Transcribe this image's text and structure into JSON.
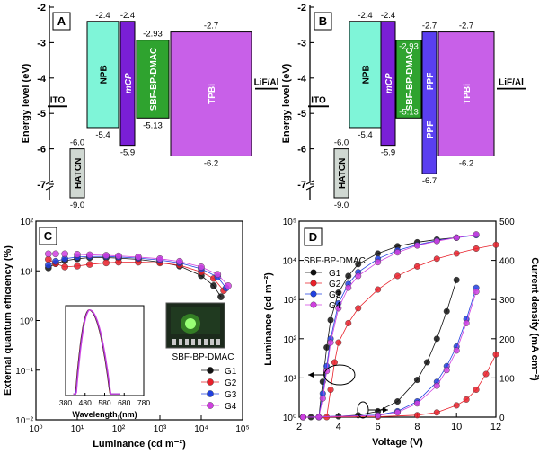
{
  "chart_data": [
    {
      "panel": "A",
      "type": "energy-level-diagram",
      "ylabel": "Energy level (eV)",
      "ylim": [
        -7,
        -2
      ],
      "yticks": [
        "-2",
        "-3",
        "-4",
        "-5",
        "-6",
        "-7"
      ],
      "layers": [
        {
          "name": "HATCN",
          "top": -6.0,
          "bottom": -9.0,
          "top_label": "-6.0",
          "bottom_label": "-9.0",
          "color": "#d0d8d2"
        },
        {
          "name": "NPB",
          "top": -2.4,
          "bottom": -5.4,
          "top_label": "-2.4",
          "bottom_label": "-5.4",
          "color": "#7ff5d8"
        },
        {
          "name": "mCP",
          "top": -2.4,
          "bottom": -5.9,
          "top_label": "-2.4",
          "bottom_label": "-5.9",
          "color": "#7a1fd6"
        },
        {
          "name": "SBF-BP-DMAC",
          "top": -2.93,
          "bottom": -5.13,
          "top_label": "-2.93",
          "bottom_label": "-5.13",
          "color": "#2fa32f"
        },
        {
          "name": "TPBi",
          "top": -2.7,
          "bottom": -6.2,
          "top_label": "-2.7",
          "bottom_label": "-6.2",
          "color": "#c860e8"
        }
      ],
      "electrodes": [
        {
          "name": "ITO"
        },
        {
          "name": "LiF/Al"
        }
      ]
    },
    {
      "panel": "B",
      "type": "energy-level-diagram",
      "ylabel": "Energy level (eV)",
      "ylim": [
        -7,
        -2
      ],
      "yticks": [
        "-2",
        "-3",
        "-4",
        "-5",
        "-6",
        "-7"
      ],
      "layers": [
        {
          "name": "HATCN",
          "top": -6.0,
          "bottom": -9.0,
          "top_label": "-6.0",
          "bottom_label": "-9.0",
          "color": "#d0d8d2"
        },
        {
          "name": "NPB",
          "top": -2.4,
          "bottom": -5.4,
          "top_label": "-2.4",
          "bottom_label": "-5.4",
          "color": "#7ff5d8"
        },
        {
          "name": "mCP",
          "top": -2.4,
          "bottom": -5.9,
          "top_label": "-2.4",
          "bottom_label": "-5.9",
          "color": "#7a1fd6"
        },
        {
          "name": "SBF-BP-DMAC",
          "top": -2.93,
          "bottom": -5.13,
          "top_label": "-2.93",
          "bottom_label": "-5.13",
          "color": "#2fa32f"
        },
        {
          "name": "PPF",
          "top": -2.7,
          "bottom": -6.7,
          "top_label": "-2.7",
          "bottom_label": "-6.7",
          "color": "#5a3ff0"
        },
        {
          "name": "TPBi",
          "top": -2.7,
          "bottom": -6.2,
          "top_label": "-2.7",
          "bottom_label": "-6.2",
          "color": "#c860e8"
        }
      ],
      "electrodes": [
        {
          "name": "ITO"
        },
        {
          "name": "LiF/Al"
        }
      ]
    },
    {
      "panel": "C",
      "type": "scatter",
      "xlabel": "Luminance (cd m⁻²)",
      "ylabel": "External quantum efficiency (%)",
      "xscale": "log",
      "yscale": "log",
      "xlim": [
        1,
        100000
      ],
      "ylim": [
        0.01,
        100
      ],
      "xticks": [
        "10⁰",
        "10¹",
        "10²",
        "10³",
        "10⁴",
        "10⁵"
      ],
      "yticks": [
        "10⁻²",
        "10⁻¹",
        "10⁰",
        "10¹",
        "10²"
      ],
      "legend_title": "SBF-BP-DMAC",
      "legend_position": "bottom-right",
      "series": [
        {
          "name": "G1",
          "color": "#111111",
          "x": [
            2,
            3,
            5,
            10,
            20,
            50,
            100,
            300,
            1000,
            3000,
            10000,
            20000,
            30000
          ],
          "y": [
            11.5,
            14,
            16,
            17.5,
            18.5,
            18.5,
            18,
            17,
            15,
            12.5,
            8,
            5,
            3
          ]
        },
        {
          "name": "G2",
          "color": "#e8202a",
          "x": [
            2,
            3,
            5,
            10,
            20,
            50,
            100,
            300,
            1000,
            3000,
            10000,
            20000,
            35000
          ],
          "y": [
            17,
            14,
            12,
            12.5,
            13.5,
            14.5,
            15,
            15,
            14.5,
            13,
            9.5,
            7,
            4
          ]
        },
        {
          "name": "G3",
          "color": "#2040e0",
          "x": [
            2,
            3,
            5,
            10,
            20,
            50,
            100,
            300,
            1000,
            3000,
            10000,
            25000,
            40000
          ],
          "y": [
            13,
            15.5,
            17.5,
            19,
            19.5,
            19.5,
            19,
            18,
            16.5,
            14.5,
            11,
            7.5,
            4.5
          ]
        },
        {
          "name": "G4",
          "color": "#d040e0",
          "x": [
            2,
            3,
            5,
            10,
            20,
            50,
            100,
            300,
            1000,
            3000,
            10000,
            25000,
            45000
          ],
          "y": [
            22,
            22,
            22,
            21.5,
            21,
            20.5,
            20,
            19,
            17.5,
            15.5,
            12,
            8.5,
            5
          ]
        }
      ],
      "inset": {
        "type": "line",
        "xlabel": "Wavelength (nm)",
        "xticks": [
          "380",
          "480",
          "580",
          "680",
          "780"
        ],
        "xlim": [
          380,
          780
        ],
        "yscale": "log",
        "ylim": [
          0.01,
          2
        ],
        "peak_nm": 500,
        "peak_value": 1.55
      }
    },
    {
      "panel": "D",
      "type": "scatter",
      "xlabel": "Voltage (V)",
      "ylabel": "Luminance (cd m⁻²)",
      "ylabel_right": "Current density (mA cm⁻²)",
      "xlim": [
        2,
        12
      ],
      "ylim": [
        1,
        100000
      ],
      "yscale": "log",
      "ylim_right": [
        0,
        500
      ],
      "xticks": [
        "2",
        "4",
        "6",
        "8",
        "10",
        "12"
      ],
      "yticks": [
        "10⁰",
        "10¹",
        "10²",
        "10³",
        "10⁴",
        "10⁵"
      ],
      "yticks_right": [
        "0",
        "100",
        "200",
        "300",
        "400",
        "500"
      ],
      "legend_title": "SBF-BP-DMAC",
      "legend_position": "top-left",
      "series": [
        {
          "name": "G1",
          "color": "#111111",
          "luminance": {
            "x": [
              2.2,
              2.6,
              3.0,
              3.2,
              3.4,
              3.6,
              4.0,
              4.5,
              5.0,
              6.0,
              7.0,
              8.0,
              9.0,
              10.0
            ],
            "y": [
              1,
              1,
              1,
              8,
              60,
              300,
              1500,
              4000,
              8000,
              15000,
              23000,
              29000,
              34000,
              38000
            ]
          },
          "current": {
            "x": [
              2.2,
              4.0,
              5.0,
              6.0,
              7.0,
              8.0,
              8.5,
              9.0,
              9.5,
              10.0
            ],
            "y": [
              0,
              2,
              5,
              15,
              40,
              95,
              140,
              200,
              270,
              350
            ]
          }
        },
        {
          "name": "G2",
          "color": "#e8202a",
          "luminance": {
            "x": [
              2.2,
              3.0,
              3.4,
              3.6,
              3.8,
              4.0,
              4.5,
              5.0,
              6.0,
              7.0,
              8.0,
              9.0,
              10.0,
              11.0,
              12.0
            ],
            "y": [
              1,
              1,
              1,
              5,
              25,
              80,
              250,
              600,
              1800,
              4000,
              7000,
              11000,
              15000,
              20000,
              25000
            ]
          },
          "current": {
            "x": [
              2.2,
              6.0,
              8.0,
              9.0,
              10.0,
              10.5,
              11.0,
              11.5,
              12.0
            ],
            "y": [
              0,
              1,
              5,
              12,
              30,
              45,
              70,
              110,
              160
            ]
          }
        },
        {
          "name": "G3",
          "color": "#2040e0",
          "luminance": {
            "x": [
              2.2,
              3.0,
              3.2,
              3.4,
              3.6,
              4.0,
              4.5,
              5.0,
              6.0,
              7.0,
              8.0,
              9.0,
              10.0,
              11.0
            ],
            "y": [
              1,
              1,
              4,
              20,
              100,
              800,
              2500,
              5000,
              11000,
              18000,
              25000,
              32000,
              38000,
              44000
            ]
          },
          "current": {
            "x": [
              2.2,
              6.0,
              7.0,
              8.0,
              9.0,
              9.5,
              10.0,
              10.5,
              11.0
            ],
            "y": [
              0,
              5,
              15,
              40,
              90,
              130,
              180,
              250,
              330
            ]
          }
        },
        {
          "name": "G4",
          "color": "#d040e0",
          "luminance": {
            "x": [
              2.2,
              3.0,
              3.2,
              3.4,
              3.6,
              4.0,
              4.5,
              5.0,
              6.0,
              7.0,
              8.0,
              9.0,
              10.0,
              11.0
            ],
            "y": [
              1,
              1,
              3,
              15,
              80,
              600,
              2000,
              4000,
              9000,
              16000,
              24000,
              31000,
              38000,
              46000
            ]
          },
          "current": {
            "x": [
              2.2,
              6.0,
              7.0,
              8.0,
              9.0,
              9.5,
              10.0,
              10.5,
              11.0
            ],
            "y": [
              0,
              4,
              12,
              35,
              80,
              120,
              170,
              240,
              320
            ]
          }
        }
      ]
    }
  ]
}
